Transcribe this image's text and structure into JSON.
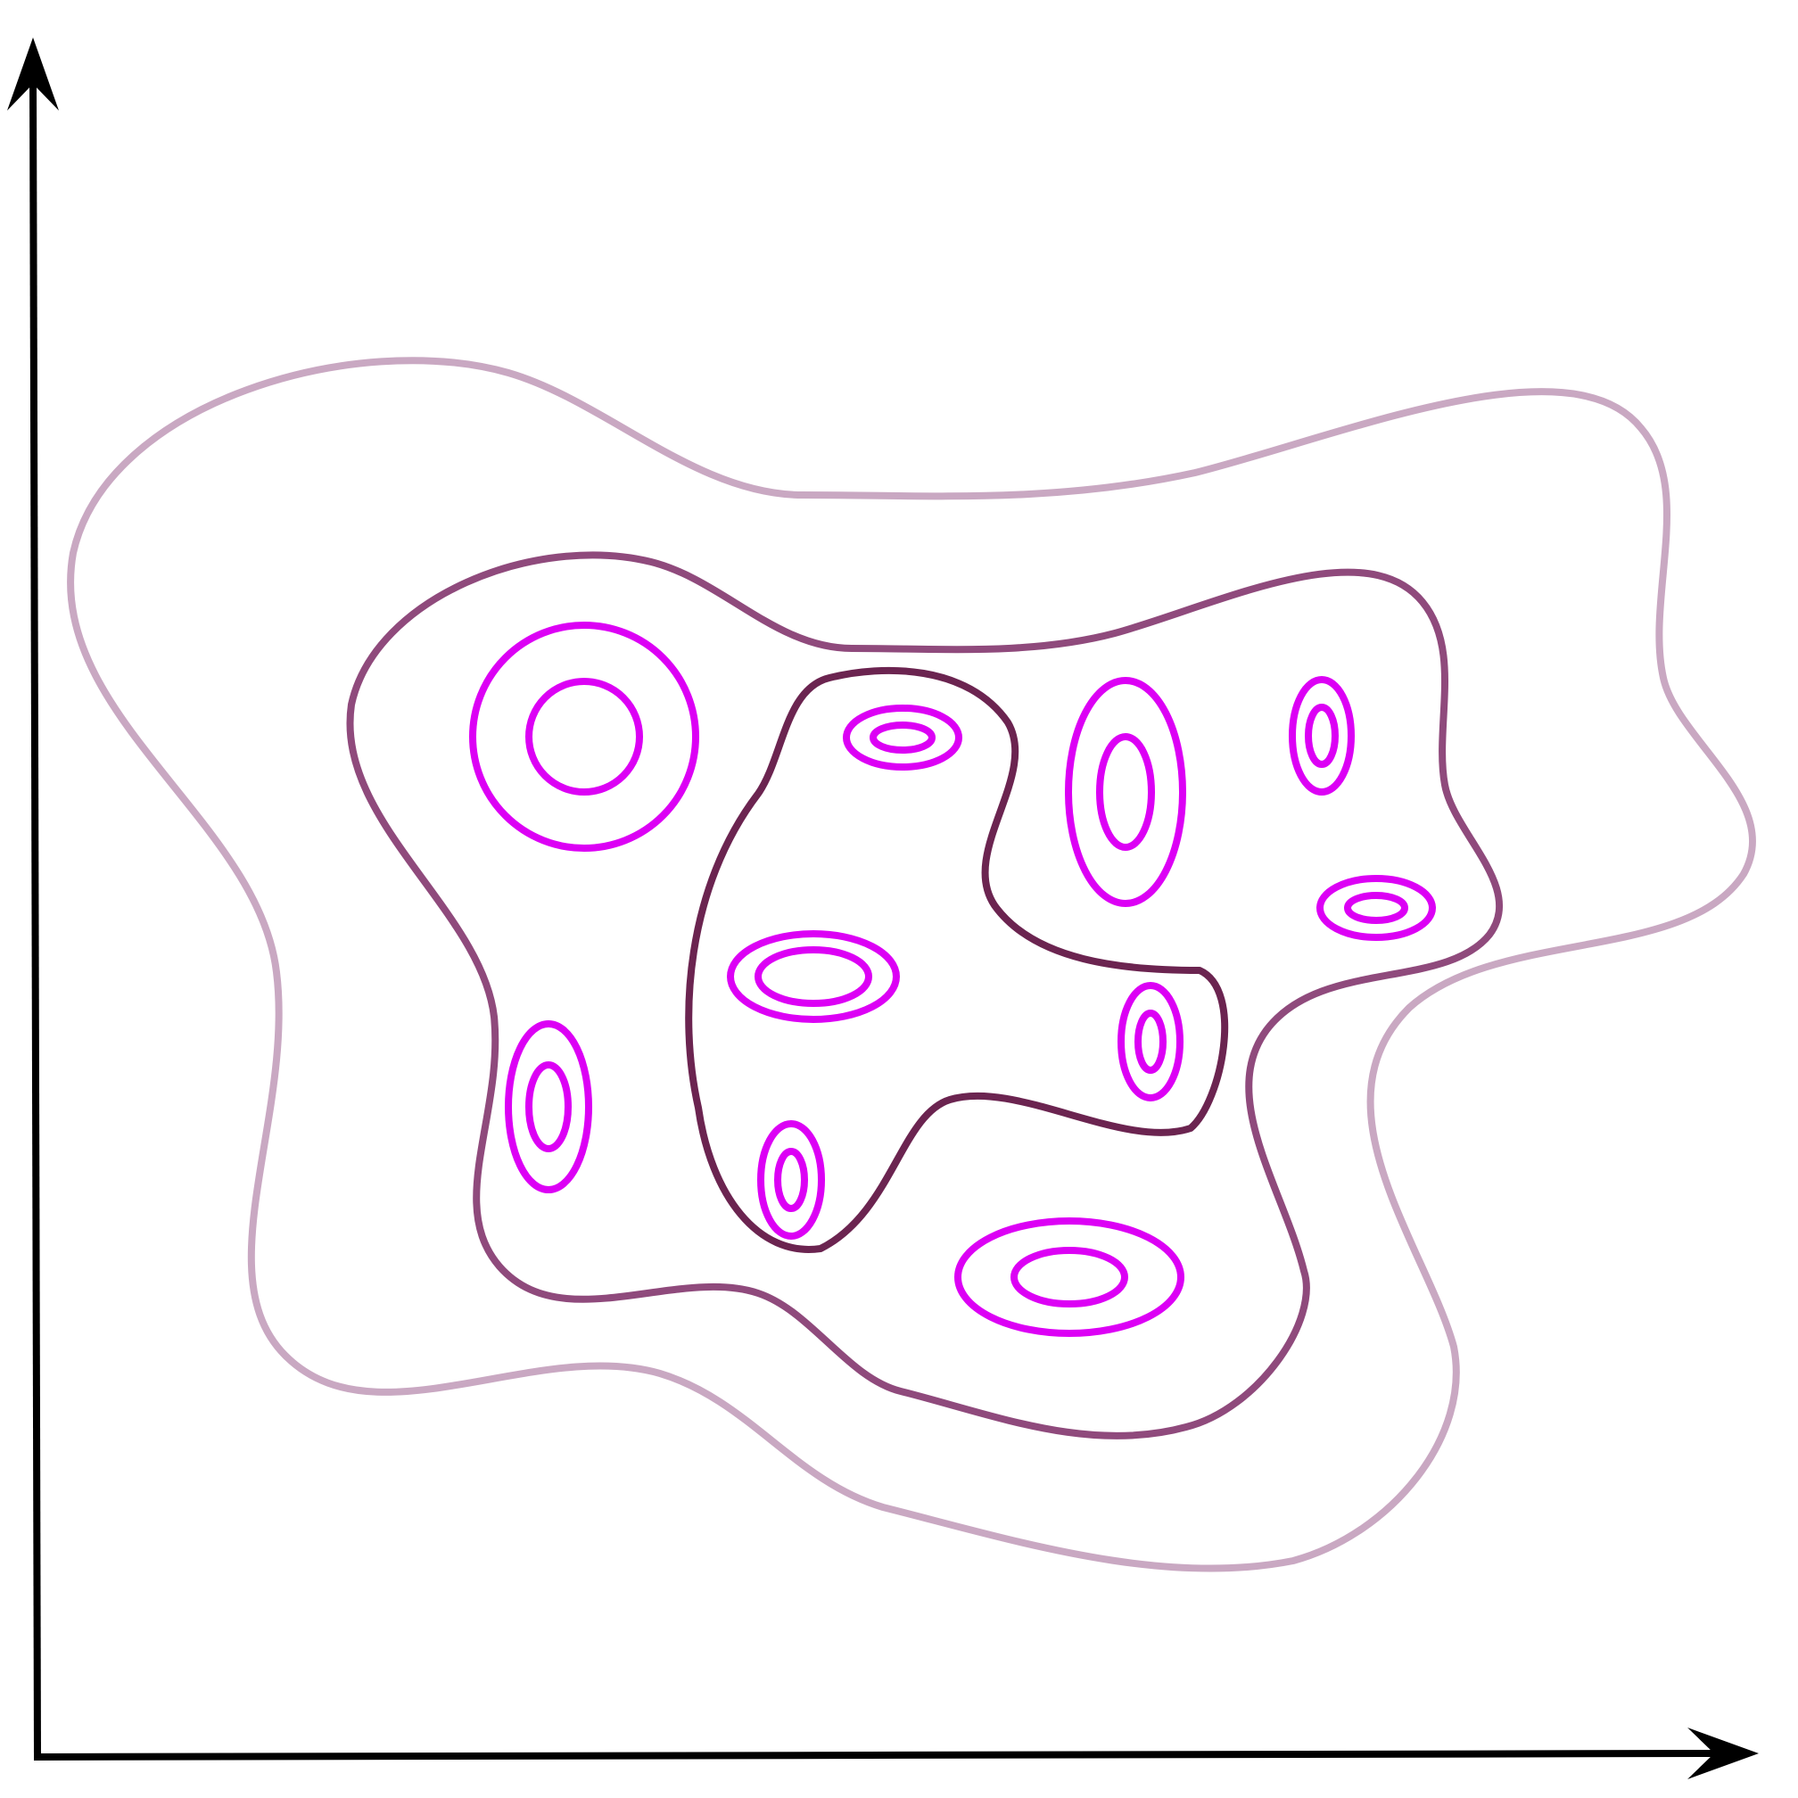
{
  "colors": {
    "axis": "#000000",
    "outer_contour": "#c9a8c2",
    "middle_contour": "#8f4a7c",
    "inner_contour": "#6b2450",
    "cluster_ring": "#dc00f5",
    "background": "#ffffff"
  },
  "contours": [
    {
      "name": "outer-contour",
      "level": "outer"
    },
    {
      "name": "middle-contour",
      "level": "middle"
    },
    {
      "name": "inner-contour",
      "level": "inner"
    }
  ],
  "clusters": [
    {
      "name": "cluster-top-left",
      "rings": 2
    },
    {
      "name": "cluster-top-center",
      "rings": 2
    },
    {
      "name": "cluster-top-right-tall",
      "rings": 2
    },
    {
      "name": "cluster-far-right-small",
      "rings": 2
    },
    {
      "name": "cluster-right-wide",
      "rings": 2
    },
    {
      "name": "cluster-center-wide",
      "rings": 2
    },
    {
      "name": "cluster-center-right",
      "rings": 2
    },
    {
      "name": "cluster-left-tall",
      "rings": 2
    },
    {
      "name": "cluster-bottom-center",
      "rings": 2
    },
    {
      "name": "cluster-bottom-wide",
      "rings": 2
    }
  ]
}
